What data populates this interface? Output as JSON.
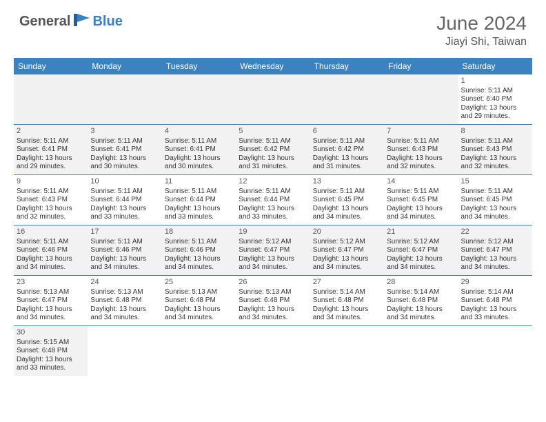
{
  "logo": {
    "text1": "General",
    "text2": "Blue"
  },
  "title": "June 2024",
  "location": "Jiayi Shi, Taiwan",
  "colors": {
    "header_bg": "#3b83c0",
    "header_text": "#ffffff",
    "alt_row_bg": "#f2f2f2",
    "border": "#3b83c0"
  },
  "day_names": [
    "Sunday",
    "Monday",
    "Tuesday",
    "Wednesday",
    "Thursday",
    "Friday",
    "Saturday"
  ],
  "weeks": [
    [
      {
        "blank": true
      },
      {
        "blank": true
      },
      {
        "blank": true
      },
      {
        "blank": true
      },
      {
        "blank": true
      },
      {
        "blank": true
      },
      {
        "day": "1",
        "sunrise": "Sunrise: 5:11 AM",
        "sunset": "Sunset: 6:40 PM",
        "daylight1": "Daylight: 13 hours",
        "daylight2": "and 29 minutes."
      }
    ],
    [
      {
        "day": "2",
        "sunrise": "Sunrise: 5:11 AM",
        "sunset": "Sunset: 6:41 PM",
        "daylight1": "Daylight: 13 hours",
        "daylight2": "and 29 minutes."
      },
      {
        "day": "3",
        "sunrise": "Sunrise: 5:11 AM",
        "sunset": "Sunset: 6:41 PM",
        "daylight1": "Daylight: 13 hours",
        "daylight2": "and 30 minutes."
      },
      {
        "day": "4",
        "sunrise": "Sunrise: 5:11 AM",
        "sunset": "Sunset: 6:41 PM",
        "daylight1": "Daylight: 13 hours",
        "daylight2": "and 30 minutes."
      },
      {
        "day": "5",
        "sunrise": "Sunrise: 5:11 AM",
        "sunset": "Sunset: 6:42 PM",
        "daylight1": "Daylight: 13 hours",
        "daylight2": "and 31 minutes."
      },
      {
        "day": "6",
        "sunrise": "Sunrise: 5:11 AM",
        "sunset": "Sunset: 6:42 PM",
        "daylight1": "Daylight: 13 hours",
        "daylight2": "and 31 minutes."
      },
      {
        "day": "7",
        "sunrise": "Sunrise: 5:11 AM",
        "sunset": "Sunset: 6:43 PM",
        "daylight1": "Daylight: 13 hours",
        "daylight2": "and 32 minutes."
      },
      {
        "day": "8",
        "sunrise": "Sunrise: 5:11 AM",
        "sunset": "Sunset: 6:43 PM",
        "daylight1": "Daylight: 13 hours",
        "daylight2": "and 32 minutes."
      }
    ],
    [
      {
        "day": "9",
        "sunrise": "Sunrise: 5:11 AM",
        "sunset": "Sunset: 6:43 PM",
        "daylight1": "Daylight: 13 hours",
        "daylight2": "and 32 minutes."
      },
      {
        "day": "10",
        "sunrise": "Sunrise: 5:11 AM",
        "sunset": "Sunset: 6:44 PM",
        "daylight1": "Daylight: 13 hours",
        "daylight2": "and 33 minutes."
      },
      {
        "day": "11",
        "sunrise": "Sunrise: 5:11 AM",
        "sunset": "Sunset: 6:44 PM",
        "daylight1": "Daylight: 13 hours",
        "daylight2": "and 33 minutes."
      },
      {
        "day": "12",
        "sunrise": "Sunrise: 5:11 AM",
        "sunset": "Sunset: 6:44 PM",
        "daylight1": "Daylight: 13 hours",
        "daylight2": "and 33 minutes."
      },
      {
        "day": "13",
        "sunrise": "Sunrise: 5:11 AM",
        "sunset": "Sunset: 6:45 PM",
        "daylight1": "Daylight: 13 hours",
        "daylight2": "and 34 minutes."
      },
      {
        "day": "14",
        "sunrise": "Sunrise: 5:11 AM",
        "sunset": "Sunset: 6:45 PM",
        "daylight1": "Daylight: 13 hours",
        "daylight2": "and 34 minutes."
      },
      {
        "day": "15",
        "sunrise": "Sunrise: 5:11 AM",
        "sunset": "Sunset: 6:45 PM",
        "daylight1": "Daylight: 13 hours",
        "daylight2": "and 34 minutes."
      }
    ],
    [
      {
        "day": "16",
        "sunrise": "Sunrise: 5:11 AM",
        "sunset": "Sunset: 6:46 PM",
        "daylight1": "Daylight: 13 hours",
        "daylight2": "and 34 minutes."
      },
      {
        "day": "17",
        "sunrise": "Sunrise: 5:11 AM",
        "sunset": "Sunset: 6:46 PM",
        "daylight1": "Daylight: 13 hours",
        "daylight2": "and 34 minutes."
      },
      {
        "day": "18",
        "sunrise": "Sunrise: 5:11 AM",
        "sunset": "Sunset: 6:46 PM",
        "daylight1": "Daylight: 13 hours",
        "daylight2": "and 34 minutes."
      },
      {
        "day": "19",
        "sunrise": "Sunrise: 5:12 AM",
        "sunset": "Sunset: 6:47 PM",
        "daylight1": "Daylight: 13 hours",
        "daylight2": "and 34 minutes."
      },
      {
        "day": "20",
        "sunrise": "Sunrise: 5:12 AM",
        "sunset": "Sunset: 6:47 PM",
        "daylight1": "Daylight: 13 hours",
        "daylight2": "and 34 minutes."
      },
      {
        "day": "21",
        "sunrise": "Sunrise: 5:12 AM",
        "sunset": "Sunset: 6:47 PM",
        "daylight1": "Daylight: 13 hours",
        "daylight2": "and 34 minutes."
      },
      {
        "day": "22",
        "sunrise": "Sunrise: 5:12 AM",
        "sunset": "Sunset: 6:47 PM",
        "daylight1": "Daylight: 13 hours",
        "daylight2": "and 34 minutes."
      }
    ],
    [
      {
        "day": "23",
        "sunrise": "Sunrise: 5:13 AM",
        "sunset": "Sunset: 6:47 PM",
        "daylight1": "Daylight: 13 hours",
        "daylight2": "and 34 minutes."
      },
      {
        "day": "24",
        "sunrise": "Sunrise: 5:13 AM",
        "sunset": "Sunset: 6:48 PM",
        "daylight1": "Daylight: 13 hours",
        "daylight2": "and 34 minutes."
      },
      {
        "day": "25",
        "sunrise": "Sunrise: 5:13 AM",
        "sunset": "Sunset: 6:48 PM",
        "daylight1": "Daylight: 13 hours",
        "daylight2": "and 34 minutes."
      },
      {
        "day": "26",
        "sunrise": "Sunrise: 5:13 AM",
        "sunset": "Sunset: 6:48 PM",
        "daylight1": "Daylight: 13 hours",
        "daylight2": "and 34 minutes."
      },
      {
        "day": "27",
        "sunrise": "Sunrise: 5:14 AM",
        "sunset": "Sunset: 6:48 PM",
        "daylight1": "Daylight: 13 hours",
        "daylight2": "and 34 minutes."
      },
      {
        "day": "28",
        "sunrise": "Sunrise: 5:14 AM",
        "sunset": "Sunset: 6:48 PM",
        "daylight1": "Daylight: 13 hours",
        "daylight2": "and 34 minutes."
      },
      {
        "day": "29",
        "sunrise": "Sunrise: 5:14 AM",
        "sunset": "Sunset: 6:48 PM",
        "daylight1": "Daylight: 13 hours",
        "daylight2": "and 33 minutes."
      }
    ],
    [
      {
        "day": "30",
        "sunrise": "Sunrise: 5:15 AM",
        "sunset": "Sunset: 6:48 PM",
        "daylight1": "Daylight: 13 hours",
        "daylight2": "and 33 minutes."
      },
      {
        "blank": true
      },
      {
        "blank": true
      },
      {
        "blank": true
      },
      {
        "blank": true
      },
      {
        "blank": true
      },
      {
        "blank": true
      }
    ]
  ]
}
